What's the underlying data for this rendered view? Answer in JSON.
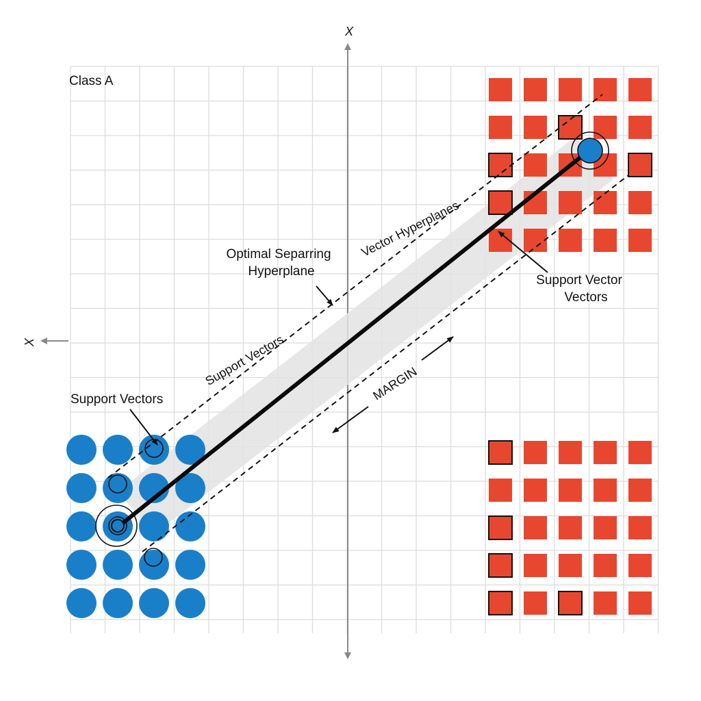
{
  "labels": {
    "axis_top": "X",
    "axis_left": "X",
    "class_a": "Class A",
    "optimal_line1": "Optimal Separring",
    "optimal_line2": "Hyperplane",
    "vector_hyperplanes": "Vector Hyperplanes",
    "support_vectors_upper": "Support Vectors",
    "support_vectors_left": "Support Vectors",
    "support_vector_right_line1": "Support Vector",
    "support_vector_right_line2": "Vectors",
    "margin": "MARGIN"
  },
  "colors": {
    "class_circle": "#1a7fc9",
    "class_square": "#e8472f",
    "grid": "#dcdcdc",
    "margin_band": "#e3e3e3",
    "hyperplane": "#0a0a0a"
  },
  "groups": {
    "blue_circles": {
      "rows": 5,
      "cols": 4,
      "shape": "circle"
    },
    "red_squares_top": {
      "rows": 5,
      "cols": 5,
      "shape": "square"
    },
    "red_squares_bottom": {
      "rows": 5,
      "cols": 5,
      "shape": "square"
    }
  }
}
